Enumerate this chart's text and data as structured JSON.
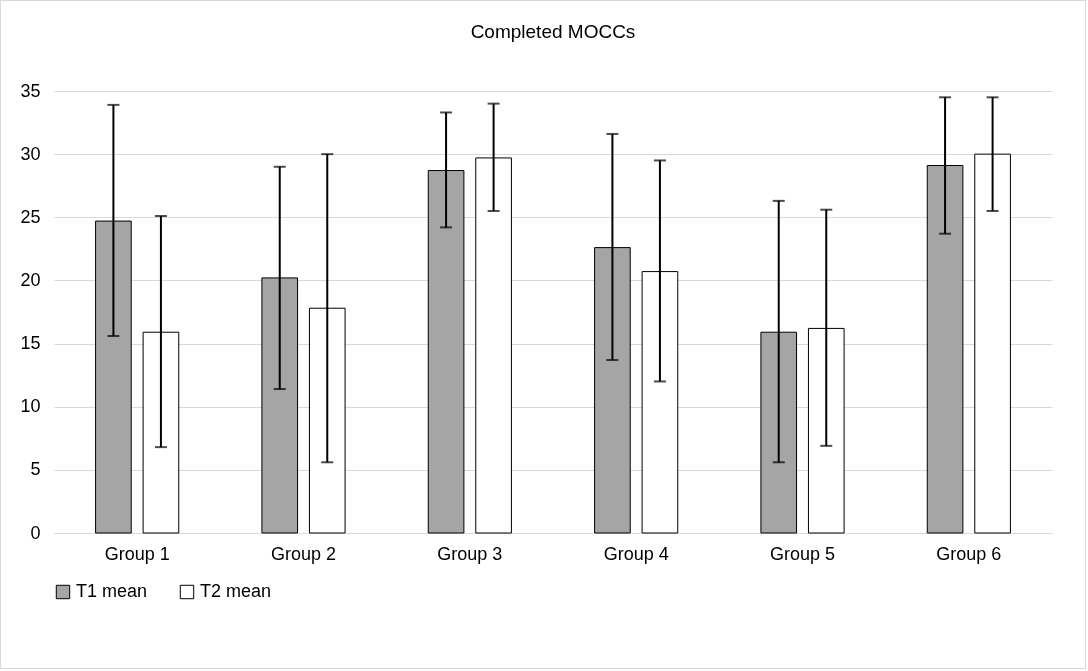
{
  "chart_data": {
    "type": "bar",
    "title": "Completed MOCCs",
    "categories": [
      "Group 1",
      "Group 2",
      "Group 3",
      "Group 4",
      "Group 5",
      "Group 6"
    ],
    "series": [
      {
        "name": "T1 mean",
        "color": "#a5a5a5",
        "values": [
          24.7,
          20.2,
          28.7,
          22.6,
          15.9,
          29.1
        ],
        "errors": [
          [
            15.6,
            33.9
          ],
          [
            11.4,
            29.0
          ],
          [
            24.2,
            33.3
          ],
          [
            13.7,
            31.6
          ],
          [
            5.6,
            26.3
          ],
          [
            23.7,
            34.5
          ]
        ]
      },
      {
        "name": "T2 mean",
        "color": "#ffffff",
        "values": [
          15.9,
          17.8,
          29.7,
          20.7,
          16.2,
          30.0
        ],
        "errors": [
          [
            6.8,
            25.1
          ],
          [
            5.6,
            30.0
          ],
          [
            25.5,
            34.0
          ],
          [
            12.0,
            29.5
          ],
          [
            6.9,
            25.6
          ],
          [
            25.5,
            34.5
          ]
        ]
      }
    ],
    "ylim": [
      0,
      35
    ],
    "yticks": [
      0,
      5,
      10,
      15,
      20,
      25,
      30,
      35
    ],
    "grid": "y",
    "legend": "bottom"
  }
}
